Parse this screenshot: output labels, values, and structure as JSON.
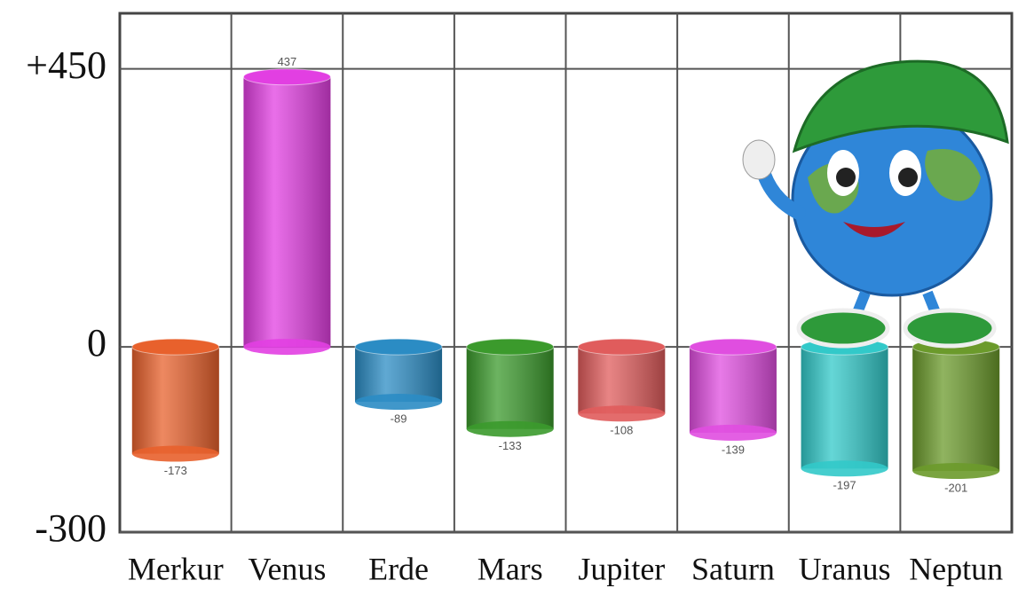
{
  "chart_data": {
    "type": "bar",
    "categories": [
      "Merkur",
      "Venus",
      "Erde",
      "Mars",
      "Jupiter",
      "Saturn",
      "Uranus",
      "Neptun"
    ],
    "values": [
      -173,
      437,
      -89,
      -133,
      -108,
      -139,
      -197,
      -201
    ],
    "colors": [
      "#e8612c",
      "#e23fe2",
      "#2b8cc4",
      "#3b9a2c",
      "#e05c5c",
      "#e04ee0",
      "#32c9c9",
      "#6b9a2b"
    ],
    "ylim": [
      -300,
      540
    ],
    "yticks": [
      -300,
      0,
      {
        "value": 450,
        "label": "+450"
      }
    ],
    "grid": true
  }
}
